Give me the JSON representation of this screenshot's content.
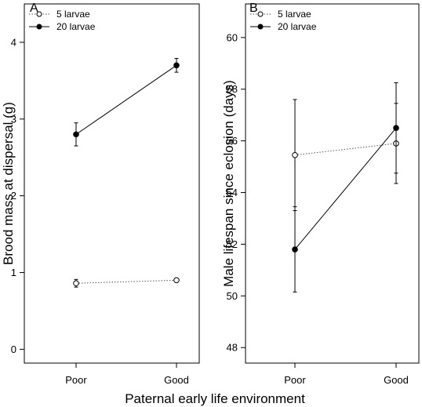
{
  "figure": {
    "xlabel": "Paternal early life environment"
  },
  "chart_data": [
    {
      "type": "line",
      "panel_label": "A",
      "categories": [
        "Poor",
        "Good"
      ],
      "ylabel": "Brood mass at dispersal (g)",
      "ylim": [
        -0.18,
        4.5
      ],
      "yticks": [
        0,
        1,
        2,
        3,
        4
      ],
      "legend": "top-left",
      "grid": false,
      "series": [
        {
          "name": "5 larvae",
          "style": "dotted-open",
          "values": [
            0.86,
            0.9
          ],
          "err": [
            0.05,
            0.02
          ]
        },
        {
          "name": "20 larvae",
          "style": "solid-filled",
          "values": [
            2.8,
            3.7
          ],
          "err": [
            0.15,
            0.09
          ]
        }
      ]
    },
    {
      "type": "line",
      "panel_label": "B",
      "categories": [
        "Poor",
        "Good"
      ],
      "ylabel": "Male lifespan since eclosion (days)",
      "ylim": [
        47.4,
        61.3
      ],
      "yticks": [
        48,
        50,
        52,
        54,
        56,
        58,
        60
      ],
      "legend": "top-left",
      "grid": false,
      "series": [
        {
          "name": "5 larvae",
          "style": "dotted-open",
          "values": [
            55.45,
            55.9
          ],
          "err": [
            2.15,
            1.55
          ]
        },
        {
          "name": "20 larvae",
          "style": "solid-filled",
          "values": [
            51.8,
            56.5
          ],
          "err": [
            1.65,
            1.75
          ]
        }
      ]
    }
  ]
}
